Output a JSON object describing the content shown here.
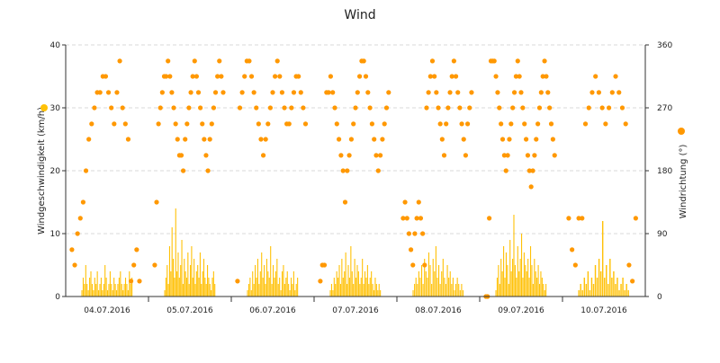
{
  "chart_data": {
    "type": "bar",
    "title": "Wind",
    "x_tick_labels": [
      "04.07.2016",
      "05.07.2016",
      "06.07.2016",
      "07.07.2016",
      "08.07.2016",
      "09.07.2016",
      "10.07.2016"
    ],
    "y_left": {
      "label": "Windgeschwindigkeit (km/h)",
      "ticks": [
        0,
        10,
        20,
        30,
        40
      ],
      "range": [
        0,
        40
      ]
    },
    "y_right": {
      "label": "Windrichtung (°)",
      "ticks": [
        0,
        90,
        180,
        270,
        360
      ],
      "range": [
        0,
        360
      ]
    },
    "grid": "horizontal dashed",
    "legend": "axis-side markers",
    "series": [
      {
        "kind": "bars",
        "color": "#FFC107",
        "days": [
          {
            "day": "04.07.2016",
            "hours": [
              0,
              0,
              0,
              0,
              0,
              0,
              0,
              0,
              0,
              0,
              0,
              0,
              0,
              0,
              0,
              0,
              0,
              0,
              0,
              0,
              0,
              0,
              0,
              0,
              0,
              0,
              0,
              0,
              0,
              0,
              0,
              0,
              0,
              0,
              0,
              0,
              0,
              0,
              0,
              0,
              0,
              0,
              0,
              0,
              0,
              0,
              0,
              0,
              0,
              0,
              0,
              0,
              0,
              0,
              0,
              0,
              0,
              0,
              0,
              0,
              0,
              0,
              0,
              0,
              0,
              0,
              0,
              0,
              0,
              0,
              0,
              0,
              0,
              0,
              0,
              0,
              0,
              0,
              0,
              0,
              0,
              0,
              0,
              0,
              0,
              0,
              0,
              0,
              0,
              0,
              0,
              0,
              0,
              0,
              0,
              0,
              0
            ]
          }
        ],
        "values": [
          0,
          0,
          0,
          0,
          0,
          0,
          0,
          0,
          0,
          0,
          0,
          0,
          0,
          0,
          0,
          0,
          0,
          0,
          0,
          0,
          0,
          0,
          0,
          0,
          0,
          0,
          0,
          0,
          0,
          0,
          0,
          0,
          0,
          0,
          0,
          0,
          0,
          0,
          0,
          0,
          0,
          0,
          0,
          0,
          0,
          0,
          0,
          0,
          0,
          0,
          0,
          0,
          0,
          0,
          0,
          0,
          0,
          0,
          0,
          0,
          0,
          0,
          0,
          0,
          0,
          0,
          0,
          0,
          0,
          0,
          0,
          0,
          0,
          0,
          0,
          0,
          0,
          0,
          0,
          0,
          0,
          0,
          0,
          0,
          0,
          0,
          0,
          0,
          0,
          0,
          0,
          0,
          0,
          0,
          0,
          0,
          0,
          0,
          0,
          0,
          0,
          0,
          0,
          0,
          0,
          0,
          0,
          0,
          0,
          0,
          0,
          0,
          0,
          0,
          0,
          0,
          0,
          0,
          0,
          0,
          0,
          0,
          0,
          0,
          0,
          0,
          0,
          0,
          0,
          0,
          0,
          0,
          0,
          0,
          0,
          0,
          0,
          0,
          0,
          0,
          0,
          0,
          0,
          0,
          0,
          0,
          0,
          0,
          0,
          0,
          0,
          0,
          0,
          0,
          0,
          0,
          0,
          0,
          0,
          0,
          0,
          0,
          0,
          0,
          0,
          0,
          0,
          0,
          0,
          0,
          0,
          0,
          0,
          0,
          0,
          0,
          0,
          0,
          0,
          0,
          0,
          0,
          0,
          0,
          0,
          0,
          0,
          0,
          0,
          0,
          0,
          0,
          0,
          0,
          0,
          0,
          0,
          0,
          0,
          0
        ]
      }
    ],
    "speed_kmh": [
      0,
      0,
      0,
      0,
      0,
      0,
      0,
      0,
      0,
      0,
      0,
      0,
      0,
      0,
      0,
      0,
      0,
      0,
      0,
      0,
      0,
      0,
      0,
      0
    ],
    "speed_bursts": [
      {
        "center": "04.07.2016",
        "values": [
          1,
          3,
          2,
          5,
          2,
          1,
          3,
          4,
          2,
          1,
          3,
          2,
          4,
          1,
          2,
          3,
          1,
          2,
          5,
          3,
          1,
          2,
          4,
          2,
          1,
          3,
          2,
          1,
          2,
          3,
          4,
          2,
          1,
          2,
          3,
          2,
          1,
          4,
          2,
          3
        ]
      },
      {
        "center": "05.07.2016",
        "values": [
          1,
          3,
          5,
          2,
          8,
          4,
          11,
          6,
          3,
          14,
          4,
          7,
          3,
          5,
          9,
          2,
          6,
          4,
          3,
          7,
          2,
          5,
          8,
          3,
          6,
          2,
          4,
          5,
          3,
          7,
          2,
          4,
          6,
          3,
          2,
          5,
          3,
          2,
          1,
          3,
          4,
          2
        ]
      },
      {
        "center": "06.07.2016",
        "values": [
          1,
          2,
          3,
          1,
          4,
          2,
          5,
          3,
          6,
          2,
          4,
          7,
          3,
          5,
          2,
          6,
          4,
          3,
          8,
          2,
          5,
          3,
          4,
          6,
          2,
          3,
          1,
          4,
          5,
          2,
          3,
          4,
          2,
          1,
          3,
          2,
          4,
          1,
          2,
          3
        ]
      },
      {
        "center": "07.07.2016",
        "values": [
          1,
          2,
          1,
          3,
          2,
          4,
          3,
          5,
          2,
          6,
          3,
          4,
          7,
          2,
          5,
          3,
          8,
          4,
          2,
          6,
          3,
          5,
          4,
          2,
          3,
          6,
          2,
          4,
          3,
          5,
          2,
          3,
          4,
          2,
          1,
          3,
          2,
          1,
          2,
          1
        ]
      },
      {
        "center": "08.07.2016",
        "values": [
          1,
          2,
          3,
          2,
          4,
          3,
          5,
          2,
          6,
          4,
          3,
          7,
          5,
          2,
          6,
          4,
          8,
          3,
          5,
          2,
          4,
          6,
          3,
          2,
          5,
          3,
          4,
          2,
          3,
          1,
          2,
          3,
          2,
          1,
          2,
          1
        ]
      },
      {
        "center": "09.07.2016",
        "values": [
          1,
          3,
          5,
          2,
          6,
          4,
          8,
          3,
          7,
          5,
          2,
          9,
          4,
          6,
          13,
          5,
          3,
          8,
          4,
          6,
          10,
          3,
          7,
          5,
          4,
          6,
          3,
          8,
          5,
          2,
          6,
          4,
          3,
          5,
          2,
          4,
          3,
          2,
          1,
          2
        ]
      },
      {
        "center": "10.07.2016",
        "values": [
          1,
          2,
          1,
          3,
          2,
          4,
          1,
          3,
          2,
          5,
          3,
          6,
          4,
          12,
          3,
          5,
          2,
          6,
          3,
          4,
          2,
          3,
          1,
          2,
          3,
          1,
          2,
          1
        ]
      }
    ],
    "direction_deg": [
      {
        "day": "04.07.2016",
        "points": [
          67,
          45,
          90,
          112,
          135,
          180,
          225,
          247,
          270,
          292,
          292,
          315,
          315,
          292,
          270,
          247,
          292,
          337,
          270,
          247,
          225,
          22,
          45,
          67,
          22
        ]
      },
      {
        "day": "05.07.2016",
        "points": [
          45,
          135,
          247,
          270,
          292,
          315,
          315,
          337,
          315,
          292,
          270,
          247,
          225,
          202,
          202,
          180,
          225,
          247,
          270,
          292,
          315,
          337,
          315,
          292,
          270,
          247,
          225,
          202,
          180,
          225,
          247,
          270,
          292,
          315,
          337,
          315,
          292
        ]
      },
      {
        "day": "06.07.2016",
        "points": [
          22,
          270,
          292,
          315,
          337,
          337,
          315,
          292,
          270,
          247,
          225,
          202,
          225,
          247,
          270,
          292,
          315,
          337,
          315,
          292,
          270,
          247,
          247,
          270,
          292,
          315,
          315,
          292,
          270,
          247
        ]
      },
      {
        "day": "07.07.2016",
        "points": [
          22,
          45,
          45,
          292,
          292,
          315,
          292,
          270,
          247,
          225,
          202,
          180,
          135,
          180,
          202,
          225,
          247,
          270,
          292,
          315,
          337,
          337,
          315,
          292,
          270,
          247,
          225,
          202,
          180,
          202,
          225,
          247,
          270,
          292
        ]
      },
      {
        "day": "08.07.2016",
        "points": [
          112,
          135,
          112,
          90,
          67,
          45,
          90,
          112,
          135,
          112,
          90,
          45,
          270,
          292,
          315,
          337,
          315,
          292,
          270,
          247,
          225,
          202,
          247,
          270,
          292,
          315,
          337,
          315,
          292,
          270,
          247,
          225,
          202,
          247,
          270,
          292
        ]
      },
      {
        "day": "09.07.2016",
        "points": [
          0,
          0,
          112,
          337,
          337,
          337,
          315,
          292,
          270,
          247,
          225,
          202,
          180,
          202,
          225,
          247,
          270,
          292,
          315,
          337,
          315,
          292,
          270,
          247,
          225,
          202,
          180,
          157,
          180,
          202,
          225,
          247,
          270,
          292,
          315,
          337,
          315,
          292,
          270,
          247,
          225,
          202
        ]
      },
      {
        "day": "10.07.2016",
        "points": [
          112,
          67,
          45,
          112,
          112,
          247,
          270,
          292,
          315,
          292,
          270,
          247,
          270,
          292,
          315,
          292,
          270,
          247,
          45,
          22,
          112
        ]
      }
    ]
  },
  "colors": {
    "speed": "#FFC107",
    "direction": "#FF9800",
    "grid": "#d8d8d8",
    "axis": "#333333",
    "text": "#222222"
  }
}
